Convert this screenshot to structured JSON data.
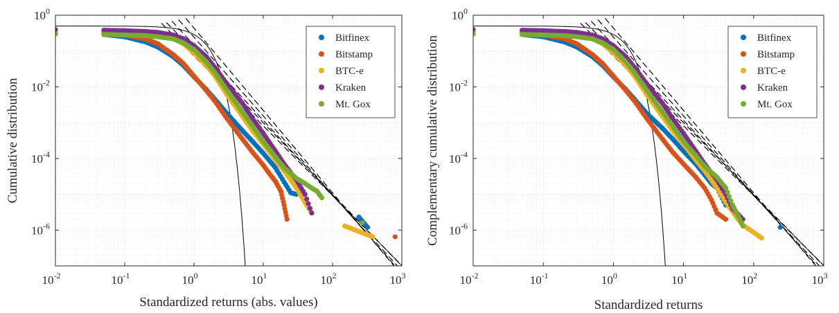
{
  "chart_data": [
    {
      "type": "scatter",
      "xlabel": "Standardized returns (abs. values)",
      "ylabel": "Cumulative distribution",
      "xscale": "log",
      "yscale": "log",
      "xlim": [
        0.01,
        1000
      ],
      "ylim": [
        1e-07,
        1
      ],
      "xticks": [
        "10-2",
        "10-1",
        "100",
        "101",
        "102",
        "103"
      ],
      "yticks": [
        "10-6",
        "10-4",
        "10-2",
        "100"
      ],
      "grid": true,
      "legend_position": "top-right",
      "series": [
        {
          "name": "Bitfinex",
          "color": "#0072BD",
          "points": [
            [
              0.01,
              0.33
            ],
            [
              0.05,
              0.29
            ],
            [
              0.1,
              0.25
            ],
            [
              0.2,
              0.18
            ],
            [
              0.3,
              0.13
            ],
            [
              0.5,
              0.07
            ],
            [
              0.7,
              0.04
            ],
            [
              1,
              0.019
            ],
            [
              1.5,
              0.0085
            ],
            [
              2,
              0.0045
            ],
            [
              3,
              0.0018
            ],
            [
              5,
              0.0006
            ],
            [
              7,
              0.0003
            ],
            [
              10,
              0.00014
            ],
            [
              15,
              5.5e-05
            ],
            [
              20,
              2.2e-05
            ],
            [
              25,
              1.1e-05
            ],
            [
              30,
              1e-05
            ],
            [
              240,
              2.3e-06
            ],
            [
              320,
              1.2e-06
            ]
          ]
        },
        {
          "name": "Bitstamp",
          "color": "#D95319",
          "points": [
            [
              0.01,
              0.34
            ],
            [
              0.05,
              0.31
            ],
            [
              0.1,
              0.28
            ],
            [
              0.2,
              0.22
            ],
            [
              0.3,
              0.16
            ],
            [
              0.5,
              0.08
            ],
            [
              0.7,
              0.045
            ],
            [
              1,
              0.02
            ],
            [
              1.5,
              0.008
            ],
            [
              2,
              0.004
            ],
            [
              3,
              0.0013
            ],
            [
              5,
              0.00035
            ],
            [
              7,
              0.00015
            ],
            [
              10,
              6.5e-05
            ],
            [
              12,
              4e-05
            ],
            [
              15,
              2.3e-05
            ],
            [
              18,
              1.2e-05
            ],
            [
              20,
              5e-06
            ],
            [
              22,
              2e-06
            ],
            [
              800,
              6.5e-07
            ]
          ]
        },
        {
          "name": "BTC-e",
          "color": "#EDB120",
          "points": [
            [
              0.01,
              0.35
            ],
            [
              0.05,
              0.33
            ],
            [
              0.1,
              0.32
            ],
            [
              0.2,
              0.3
            ],
            [
              0.3,
              0.28
            ],
            [
              0.5,
              0.22
            ],
            [
              0.7,
              0.16
            ],
            [
              1,
              0.09
            ],
            [
              1.5,
              0.04
            ],
            [
              2,
              0.02
            ],
            [
              3,
              0.006
            ],
            [
              5,
              0.0015
            ],
            [
              7,
              0.0006
            ],
            [
              10,
              0.00025
            ],
            [
              15,
              9e-05
            ],
            [
              20,
              4.5e-05
            ],
            [
              30,
              1.5e-05
            ],
            [
              40,
              6e-06
            ],
            [
              50,
              3e-06
            ],
            [
              150,
              1.3e-06
            ],
            [
              380,
              6.5e-07
            ]
          ]
        },
        {
          "name": "Kraken",
          "color": "#7E2F8E",
          "points": [
            [
              0.01,
              0.4
            ],
            [
              0.05,
              0.38
            ],
            [
              0.1,
              0.37
            ],
            [
              0.2,
              0.35
            ],
            [
              0.3,
              0.33
            ],
            [
              0.5,
              0.28
            ],
            [
              0.7,
              0.22
            ],
            [
              1,
              0.14
            ],
            [
              1.5,
              0.07
            ],
            [
              2,
              0.035
            ],
            [
              3,
              0.012
            ],
            [
              5,
              0.0035
            ],
            [
              7,
              0.0013
            ],
            [
              10,
              0.0005
            ],
            [
              15,
              0.00016
            ],
            [
              20,
              7e-05
            ],
            [
              30,
              2.5e-05
            ],
            [
              40,
              1e-05
            ],
            [
              50,
              3e-06
            ]
          ]
        },
        {
          "name": "Mt. Gox",
          "color": "#77AC30",
          "points": [
            [
              0.01,
              0.3
            ],
            [
              0.05,
              0.29
            ],
            [
              0.1,
              0.28
            ],
            [
              0.2,
              0.27
            ],
            [
              0.3,
              0.25
            ],
            [
              0.5,
              0.22
            ],
            [
              0.7,
              0.17
            ],
            [
              1,
              0.11
            ],
            [
              1.5,
              0.05
            ],
            [
              2,
              0.025
            ],
            [
              3,
              0.008
            ],
            [
              5,
              0.002
            ],
            [
              7,
              0.0008
            ],
            [
              10,
              0.0003
            ],
            [
              15,
              0.00011
            ],
            [
              20,
              5.5e-05
            ],
            [
              30,
              2.8e-05
            ],
            [
              40,
              2e-05
            ],
            [
              50,
              1.5e-05
            ],
            [
              60,
              1.2e-05
            ],
            [
              70,
              8e-06
            ],
            [
              270,
              1.6e-06
            ]
          ]
        }
      ]
    },
    {
      "type": "scatter",
      "xlabel": "Standardized returns",
      "ylabel": "Complementary cumulative distribution",
      "xscale": "log",
      "yscale": "log",
      "xlim": [
        0.01,
        1000
      ],
      "ylim": [
        1e-07,
        1
      ],
      "xticks": [
        "10-2",
        "10-1",
        "100",
        "101",
        "102",
        "103"
      ],
      "yticks": [
        "10-6",
        "10-4",
        "10-2",
        "100"
      ],
      "grid": true,
      "legend_position": "top-right",
      "series": [
        {
          "name": "Bitfinex",
          "color": "#0072BD",
          "points": [
            [
              0.01,
              0.33
            ],
            [
              0.05,
              0.29
            ],
            [
              0.1,
              0.25
            ],
            [
              0.2,
              0.18
            ],
            [
              0.3,
              0.13
            ],
            [
              0.5,
              0.07
            ],
            [
              0.7,
              0.04
            ],
            [
              1,
              0.019
            ],
            [
              1.5,
              0.0085
            ],
            [
              2,
              0.0045
            ],
            [
              3,
              0.0018
            ],
            [
              5,
              0.0007
            ],
            [
              7,
              0.00035
            ],
            [
              10,
              0.00016
            ],
            [
              15,
              7e-05
            ],
            [
              20,
              3.5e-05
            ],
            [
              25,
              2e-05
            ],
            [
              30,
              1.5e-05
            ],
            [
              40,
              5e-06
            ],
            [
              240,
              1.2e-06
            ]
          ]
        },
        {
          "name": "Bitstamp",
          "color": "#D95319",
          "points": [
            [
              0.01,
              0.34
            ],
            [
              0.05,
              0.31
            ],
            [
              0.1,
              0.28
            ],
            [
              0.2,
              0.22
            ],
            [
              0.3,
              0.16
            ],
            [
              0.5,
              0.08
            ],
            [
              0.7,
              0.045
            ],
            [
              1,
              0.02
            ],
            [
              1.5,
              0.008
            ],
            [
              2,
              0.004
            ],
            [
              3,
              0.0013
            ],
            [
              5,
              0.00035
            ],
            [
              7,
              0.00015
            ],
            [
              10,
              7e-05
            ],
            [
              15,
              3e-05
            ],
            [
              20,
              1.5e-05
            ],
            [
              25,
              7e-06
            ],
            [
              30,
              3e-06
            ],
            [
              40,
              2e-06
            ]
          ]
        },
        {
          "name": "BTC-e",
          "color": "#EDB120",
          "points": [
            [
              0.01,
              0.35
            ],
            [
              0.05,
              0.33
            ],
            [
              0.1,
              0.32
            ],
            [
              0.2,
              0.3
            ],
            [
              0.3,
              0.28
            ],
            [
              0.5,
              0.22
            ],
            [
              0.7,
              0.16
            ],
            [
              1,
              0.09
            ],
            [
              1.5,
              0.04
            ],
            [
              2,
              0.02
            ],
            [
              3,
              0.006
            ],
            [
              5,
              0.0015
            ],
            [
              7,
              0.0006
            ],
            [
              10,
              0.00025
            ],
            [
              15,
              9e-05
            ],
            [
              20,
              4.5e-05
            ],
            [
              30,
              1.5e-05
            ],
            [
              40,
              6e-06
            ],
            [
              60,
              2e-06
            ],
            [
              70,
              1.4e-06
            ],
            [
              130,
              6e-07
            ]
          ]
        },
        {
          "name": "Kraken",
          "color": "#7E2F8E",
          "points": [
            [
              0.01,
              0.4
            ],
            [
              0.05,
              0.38
            ],
            [
              0.1,
              0.37
            ],
            [
              0.2,
              0.35
            ],
            [
              0.3,
              0.33
            ],
            [
              0.5,
              0.28
            ],
            [
              0.7,
              0.22
            ],
            [
              1,
              0.14
            ],
            [
              1.5,
              0.07
            ],
            [
              2,
              0.035
            ],
            [
              3,
              0.012
            ],
            [
              5,
              0.0035
            ],
            [
              7,
              0.0013
            ],
            [
              10,
              0.0005
            ],
            [
              15,
              0.00016
            ],
            [
              20,
              7e-05
            ],
            [
              30,
              2.5e-05
            ],
            [
              40,
              1e-05
            ],
            [
              50,
              4e-06
            ],
            [
              70,
              2e-06
            ]
          ]
        },
        {
          "name": "Mt. Gox",
          "color": "#77AC30",
          "points": [
            [
              0.01,
              0.3
            ],
            [
              0.05,
              0.29
            ],
            [
              0.1,
              0.28
            ],
            [
              0.2,
              0.27
            ],
            [
              0.3,
              0.25
            ],
            [
              0.5,
              0.22
            ],
            [
              0.7,
              0.17
            ],
            [
              1,
              0.11
            ],
            [
              1.5,
              0.05
            ],
            [
              2,
              0.025
            ],
            [
              3,
              0.008
            ],
            [
              5,
              0.002
            ],
            [
              7,
              0.0008
            ],
            [
              10,
              0.0003
            ],
            [
              15,
              0.00012
            ],
            [
              20,
              6e-05
            ],
            [
              30,
              3e-05
            ],
            [
              40,
              1.5e-05
            ],
            [
              50,
              5e-06
            ],
            [
              60,
              2.5e-06
            ],
            [
              70,
              1.3e-06
            ]
          ]
        }
      ]
    }
  ]
}
